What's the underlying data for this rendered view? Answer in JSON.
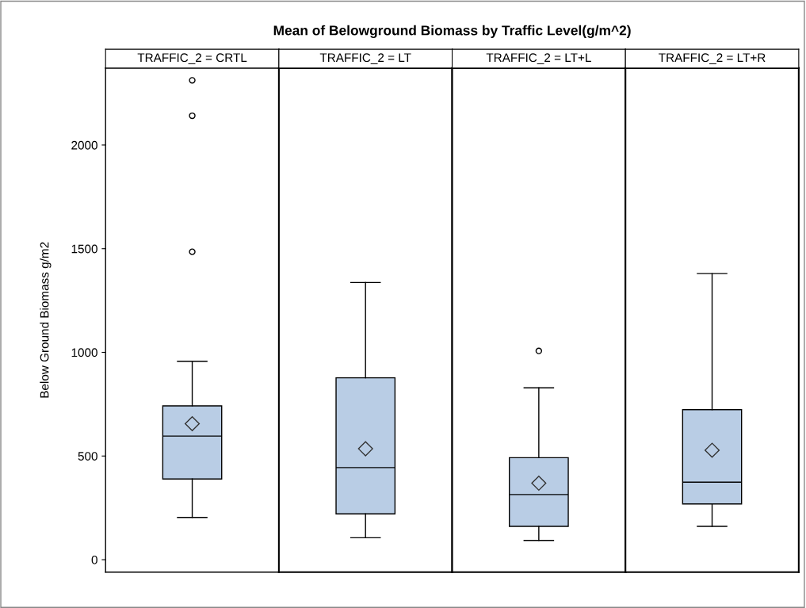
{
  "chart_data": {
    "type": "box",
    "title": "Mean of Belowground Biomass by Traffic Level(g/m^2)",
    "ylabel": "Below Ground Biomass g/m2",
    "categories": [
      "TRAFFIC_2 = CRTL",
      "TRAFFIC_2 = LT",
      "TRAFFIC_2 = LT+L",
      "TRAFFIC_2 = LT+R"
    ],
    "color": "#b9cde5",
    "boxes": [
      {
        "low": 204,
        "q1": 389,
        "median": 596,
        "q3": 742,
        "high": 957,
        "mean": 656,
        "outliers": [
          1485,
          2141,
          2312
        ]
      },
      {
        "low": 106,
        "q1": 221,
        "median": 444,
        "q3": 877,
        "high": 1337,
        "mean": 535
      },
      {
        "low": 93,
        "q1": 161,
        "median": 314,
        "q3": 492,
        "high": 829,
        "mean": 369,
        "outliers": [
          1007
        ]
      },
      {
        "low": 161,
        "q1": 269,
        "median": 374,
        "q3": 724,
        "high": 1380,
        "mean": 528
      }
    ],
    "ylim": [
      -60,
      2371
    ],
    "yticks": [
      0,
      500,
      1000,
      1500,
      2000
    ],
    "grid": false
  }
}
